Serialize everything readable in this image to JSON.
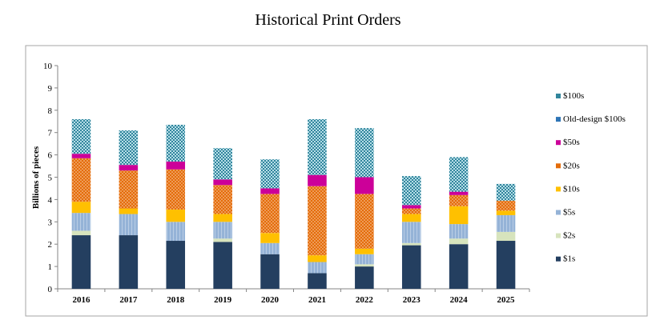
{
  "title": "Historical Print Orders",
  "chart_data": {
    "type": "bar",
    "stacked": true,
    "title": "Historical Print Orders",
    "xlabel": "",
    "ylabel": "Billions of pieces",
    "ylim": [
      0,
      10
    ],
    "yticks": [
      "0",
      "1",
      "2",
      "3",
      "4",
      "5",
      "6",
      "7",
      "8",
      "9",
      "10"
    ],
    "grid": false,
    "legend_position": "right",
    "categories": [
      "2016",
      "2017",
      "2018",
      "2019",
      "2020",
      "2021",
      "2022",
      "2023",
      "2024",
      "2025"
    ],
    "series": [
      {
        "name": "$1s",
        "color": "#243f60",
        "pattern": "solid",
        "values": [
          2.4,
          2.4,
          2.15,
          2.1,
          1.55,
          0.7,
          1.0,
          1.95,
          2.0,
          2.15
        ]
      },
      {
        "name": "$2s",
        "color": "#d7e4bd",
        "pattern": "solid",
        "values": [
          0.2,
          0.0,
          0.0,
          0.15,
          0.0,
          0.0,
          0.1,
          0.1,
          0.25,
          0.4
        ]
      },
      {
        "name": "$5s",
        "color": "#95b3d7",
        "pattern": "stripes",
        "values": [
          0.8,
          0.95,
          0.85,
          0.75,
          0.5,
          0.5,
          0.45,
          0.95,
          0.65,
          0.75
        ]
      },
      {
        "name": "$10s",
        "color": "#ffc000",
        "pattern": "solid",
        "values": [
          0.5,
          0.25,
          0.55,
          0.35,
          0.45,
          0.3,
          0.25,
          0.35,
          0.8,
          0.2
        ]
      },
      {
        "name": "$20s",
        "color": "#e46c0a",
        "pattern": "dots",
        "values": [
          1.95,
          1.7,
          1.8,
          1.3,
          1.75,
          3.1,
          2.45,
          0.25,
          0.5,
          0.45
        ]
      },
      {
        "name": "$50s",
        "color": "#cc0099",
        "pattern": "solid",
        "values": [
          0.2,
          0.25,
          0.35,
          0.25,
          0.25,
          0.5,
          0.75,
          0.15,
          0.15,
          0.0
        ]
      },
      {
        "name": "Old-design $100s",
        "color": "#2e75b6",
        "pattern": "solid",
        "values": [
          0,
          0,
          0,
          0,
          0,
          0,
          0,
          0,
          0,
          0
        ]
      },
      {
        "name": "$100s",
        "color": "#31859c",
        "pattern": "checker",
        "values": [
          1.55,
          1.55,
          1.65,
          1.4,
          1.3,
          2.5,
          2.2,
          1.3,
          1.55,
          0.75
        ]
      }
    ],
    "legend_order": [
      "$100s",
      "Old-design $100s",
      "$50s",
      "$20s",
      "$10s",
      "$5s",
      "$2s",
      "$1s"
    ]
  }
}
